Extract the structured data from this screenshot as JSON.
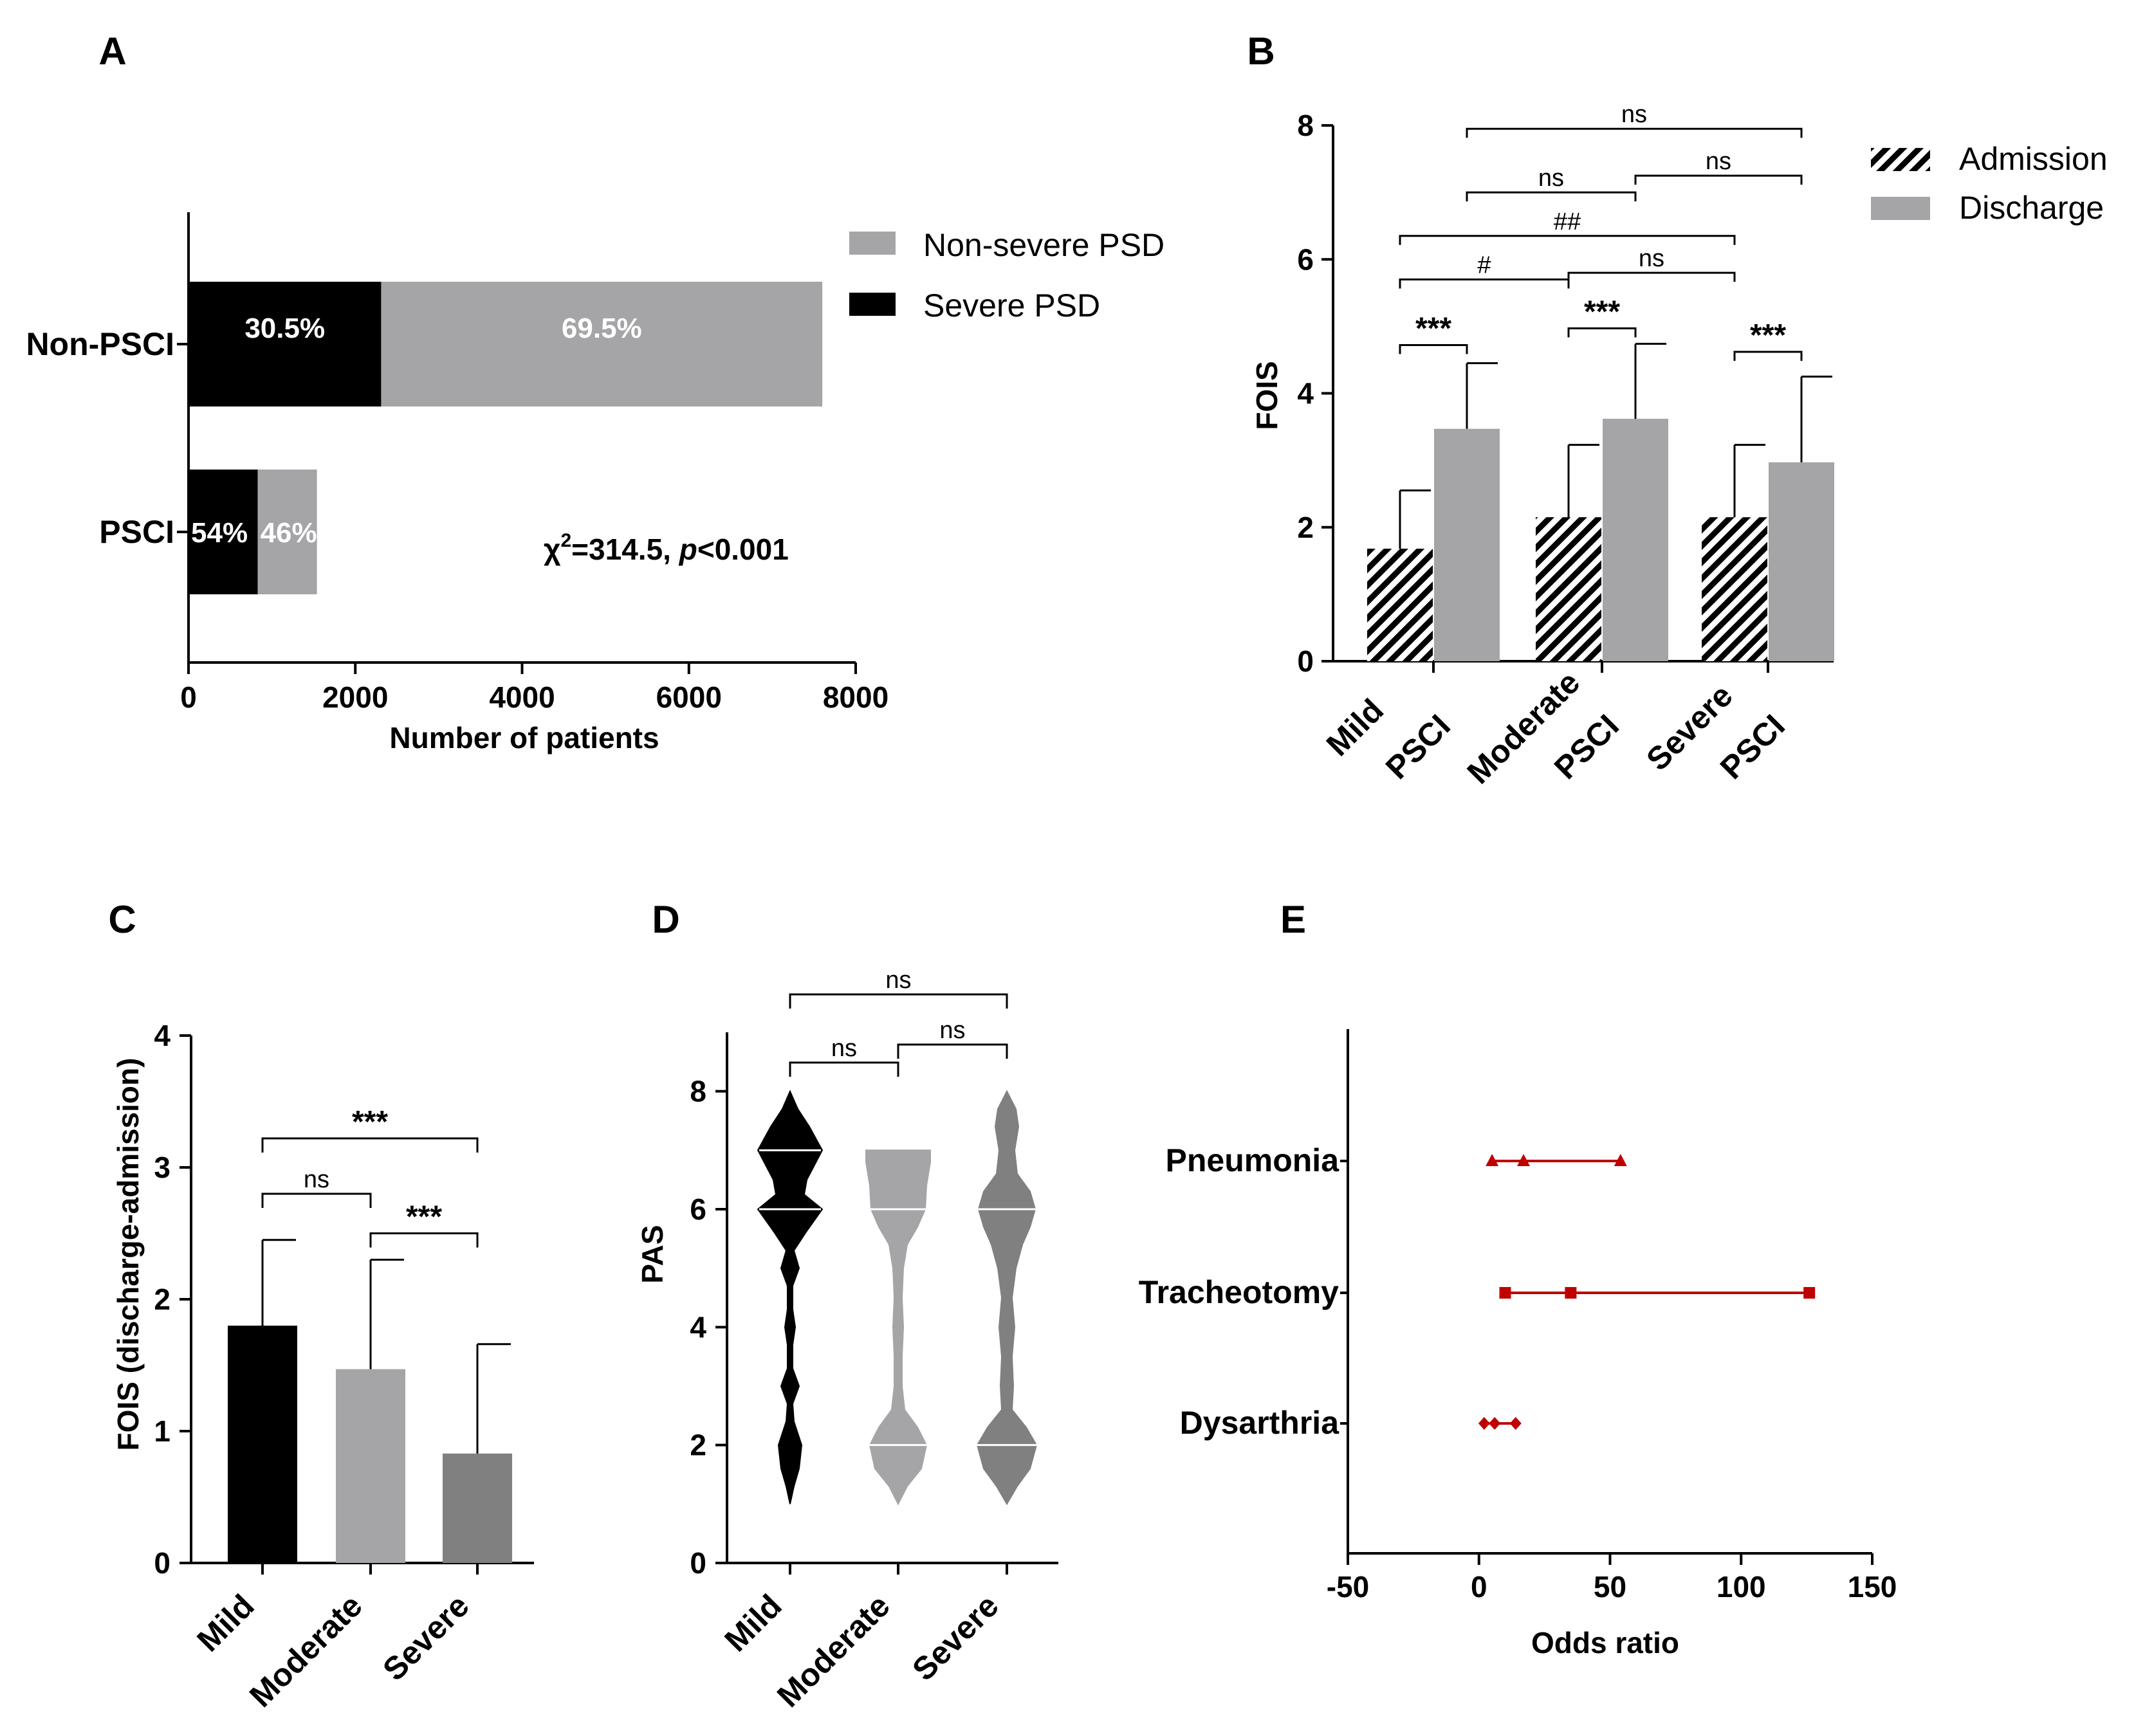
{
  "chart_data": [
    {
      "panel": "A",
      "type": "bar",
      "orientation": "horizontal",
      "stacked": true,
      "xlabel": "Number of patients",
      "xlim": [
        0,
        8000
      ],
      "xticks": [
        "0",
        "2000",
        "4000",
        "6000",
        "8000"
      ],
      "categories": [
        "Non-PSCI",
        "PSCI"
      ],
      "series": [
        {
          "name": "Severe PSD",
          "color": "#000000",
          "values": [
            2310,
            830
          ],
          "labels": [
            "30.5%",
            "54%"
          ]
        },
        {
          "name": "Non-severe PSD",
          "color": "#a5a5a8",
          "values": [
            5290,
            710
          ],
          "labels": [
            "69.5%",
            "46%"
          ]
        }
      ],
      "legend": [
        "Non-severe PSD",
        "Severe PSD"
      ],
      "annotation": {
        "chi": "χ",
        "sup": "2",
        "stat": "=314.5, ",
        "p": "p",
        "pval": "<0.001"
      }
    },
    {
      "panel": "B",
      "type": "bar",
      "ylabel": "FOIS",
      "ylim": [
        0,
        8
      ],
      "yticks": [
        "0",
        "2",
        "4",
        "6",
        "8"
      ],
      "categories": [
        [
          "Mild",
          "PSCI"
        ],
        [
          "Moderate",
          "PSCI"
        ],
        [
          "Severe",
          "PSCI"
        ]
      ],
      "series": [
        {
          "name": "Admission",
          "pattern": "hatched",
          "values": [
            1.68,
            2.15,
            2.15
          ],
          "err": [
            0.87,
            1.08,
            1.08
          ]
        },
        {
          "name": "Discharge",
          "color": "#a5a5a8",
          "values": [
            3.47,
            3.62,
            2.97
          ],
          "err": [
            0.98,
            1.12,
            1.28
          ]
        }
      ],
      "brackets": [
        {
          "label": "***",
          "from": "Mild-Admission",
          "to": "Mild-Discharge"
        },
        {
          "label": "***",
          "from": "Moderate-Admission",
          "to": "Moderate-Discharge"
        },
        {
          "label": "***",
          "from": "Severe-Admission",
          "to": "Severe-Discharge"
        },
        {
          "label": "#",
          "from": "Mild-Admission",
          "to": "Moderate-Admission"
        },
        {
          "label": "ns",
          "from": "Moderate-Admission",
          "to": "Severe-Admission"
        },
        {
          "label": "##",
          "from": "Mild-Admission",
          "to": "Severe-Admission"
        },
        {
          "label": "ns",
          "from": "Mild-Discharge",
          "to": "Moderate-Discharge"
        },
        {
          "label": "ns",
          "from": "Moderate-Discharge",
          "to": "Severe-Discharge"
        },
        {
          "label": "ns",
          "from": "Mild-Discharge",
          "to": "Severe-Discharge"
        }
      ]
    },
    {
      "panel": "C",
      "type": "bar",
      "ylabel": "FOIS (discharge-admission)",
      "ylim": [
        0,
        4
      ],
      "yticks": [
        "0",
        "1",
        "2",
        "3",
        "4"
      ],
      "categories": [
        "Mild",
        "Moderate",
        "Severe"
      ],
      "values": [
        1.8,
        1.47,
        0.83
      ],
      "err": [
        0.65,
        0.83,
        0.83
      ],
      "colors": [
        "#000000",
        "#a5a5a8",
        "#808080"
      ],
      "brackets": [
        {
          "label": "***",
          "from": "Mild",
          "to": "Severe"
        },
        {
          "label": "ns",
          "from": "Mild",
          "to": "Moderate"
        },
        {
          "label": "***",
          "from": "Moderate",
          "to": "Severe"
        }
      ]
    },
    {
      "panel": "D",
      "type": "violin",
      "ylabel": "PAS",
      "ylim": [
        0,
        9
      ],
      "yticks": [
        "0",
        "2",
        "4",
        "6",
        "8"
      ],
      "categories": [
        "Mild",
        "Moderate",
        "Severe"
      ],
      "colors": [
        "#000000",
        "#a5a5a8",
        "#808080"
      ],
      "medians": [
        6,
        6,
        6
      ],
      "quartiles": [
        [
          6,
          7
        ],
        [
          2,
          6
        ],
        [
          2,
          6
        ]
      ],
      "ranges": [
        [
          1,
          8
        ],
        [
          1,
          7
        ],
        [
          1,
          8
        ]
      ],
      "brackets": [
        {
          "label": "ns",
          "from": "Mild",
          "to": "Moderate"
        },
        {
          "label": "ns",
          "from": "Moderate",
          "to": "Severe"
        },
        {
          "label": "ns",
          "from": "Mild",
          "to": "Severe"
        }
      ]
    },
    {
      "panel": "E",
      "type": "scatter",
      "subtype": "forest",
      "xlabel": "Odds ratio",
      "xlim": [
        -50,
        150
      ],
      "xticks": [
        "-50",
        "0",
        "50",
        "100",
        "150"
      ],
      "categories": [
        "Pneumonia",
        "Tracheotomy",
        "Dysarthria"
      ],
      "color": "#c00000",
      "series": [
        {
          "name": "Pneumonia",
          "or": 17,
          "ci": [
            5,
            54
          ],
          "marker": "triangle"
        },
        {
          "name": "Tracheotomy",
          "or": 35,
          "ci": [
            10,
            126
          ],
          "marker": "square"
        },
        {
          "name": "Dysarthria",
          "or": 6,
          "ci": [
            2,
            14
          ],
          "marker": "diamond"
        }
      ]
    }
  ]
}
